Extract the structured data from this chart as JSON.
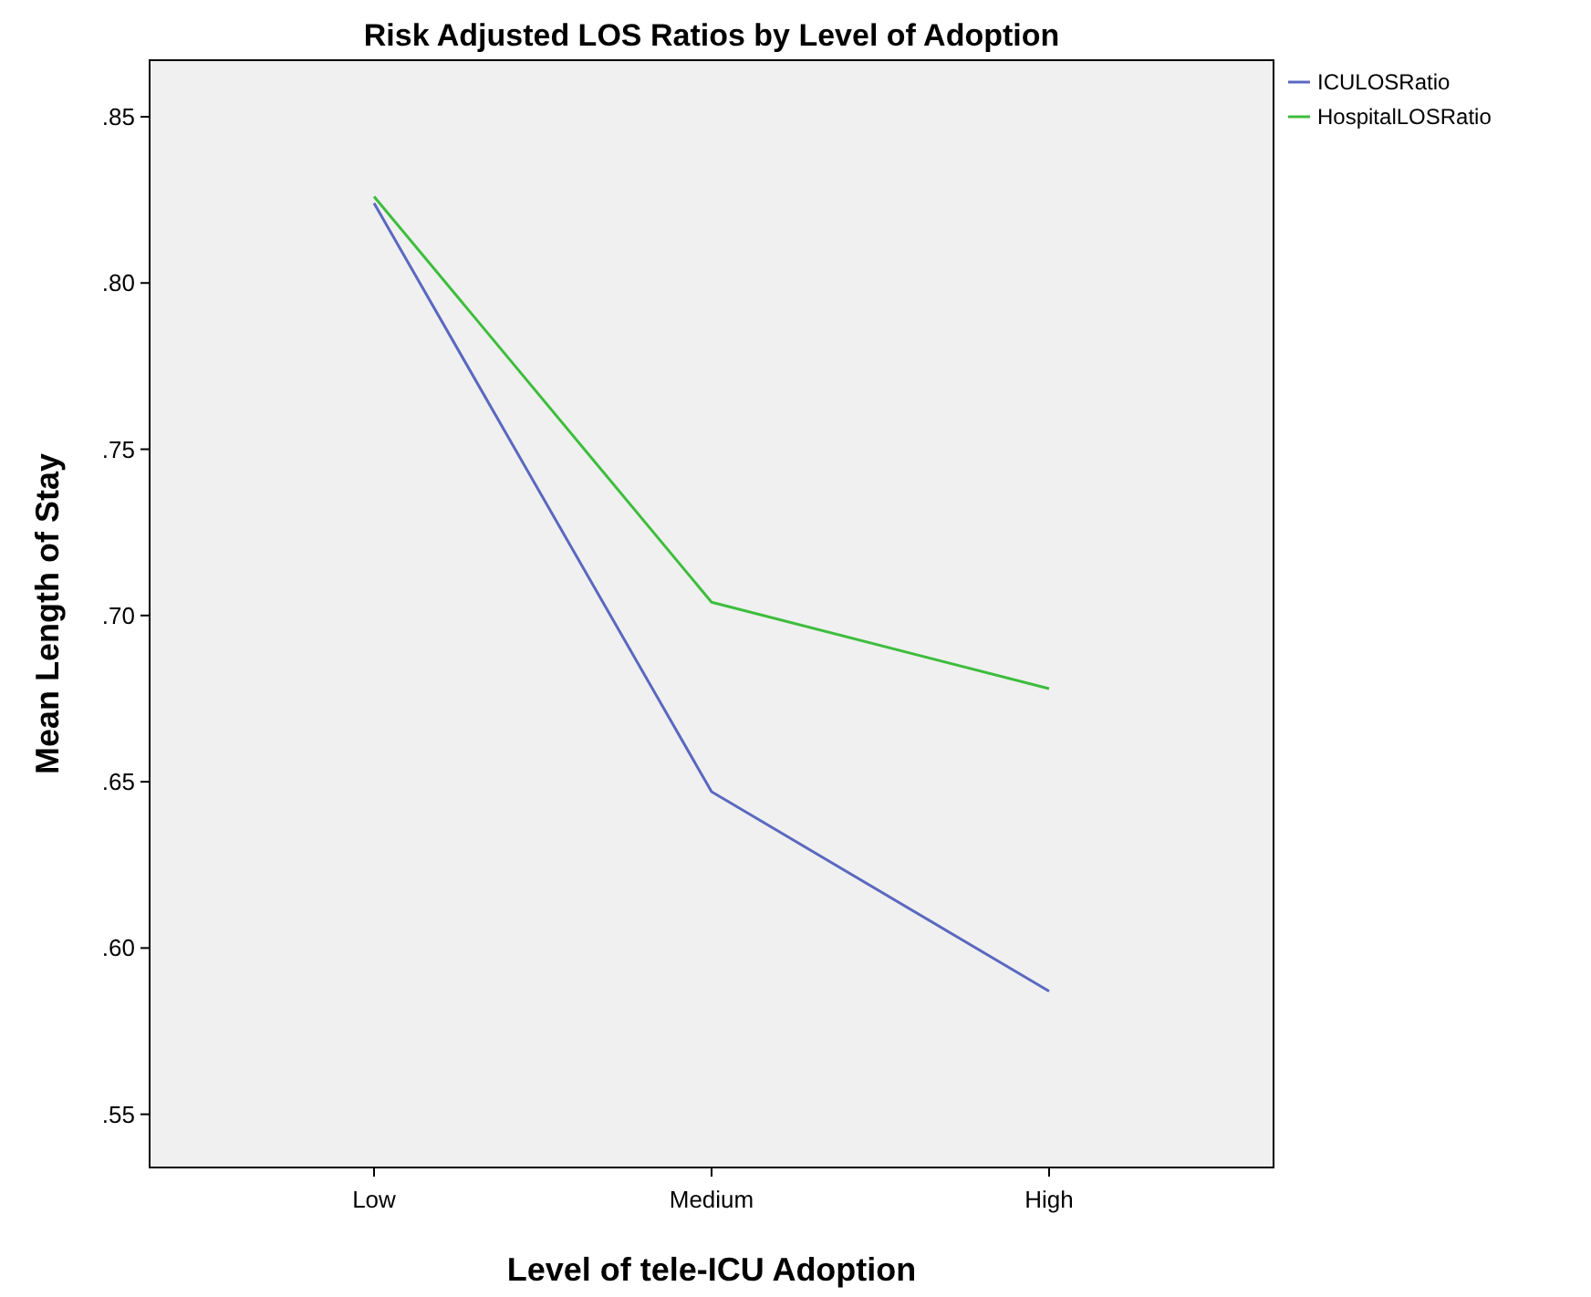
{
  "chart_data": {
    "type": "line",
    "title": "Risk Adjusted LOS Ratios by Level of Adoption",
    "xlabel": "Level of tele-ICU Adoption",
    "ylabel": "Mean Length of Stay",
    "categories": [
      "Low",
      "Medium",
      "High"
    ],
    "series": [
      {
        "name": "ICULOSRatio",
        "color": "#5a68c0",
        "values": [
          0.824,
          0.647,
          0.587
        ]
      },
      {
        "name": "HospitalLOSRatio",
        "color": "#3dbd3d",
        "values": [
          0.826,
          0.704,
          0.678
        ]
      }
    ],
    "ylim": [
      0.534,
      0.867
    ],
    "yticks": [
      {
        "value": 0.55,
        "label": ".55"
      },
      {
        "value": 0.6,
        "label": ".60"
      },
      {
        "value": 0.65,
        "label": ".65"
      },
      {
        "value": 0.7,
        "label": ".70"
      },
      {
        "value": 0.75,
        "label": ".75"
      },
      {
        "value": 0.8,
        "label": ".80"
      },
      {
        "value": 0.85,
        "label": ".85"
      }
    ],
    "grid": false,
    "legend": "top right",
    "marker": "none",
    "line_style": "solid"
  }
}
